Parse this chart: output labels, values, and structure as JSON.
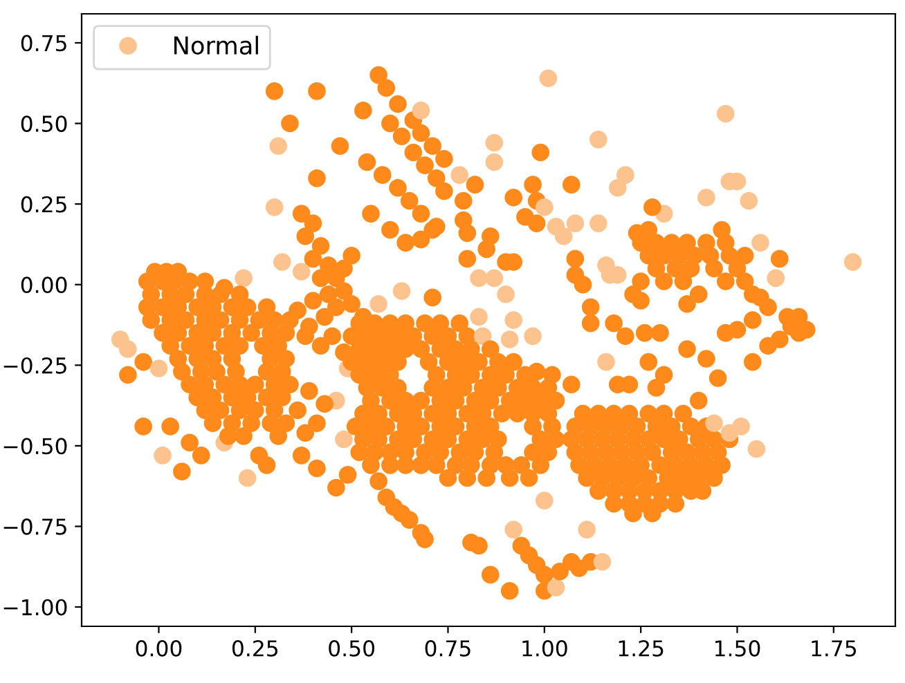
{
  "chart_data": {
    "type": "scatter",
    "xlim": [
      -0.2,
      1.91
    ],
    "ylim": [
      -1.06,
      0.84
    ],
    "xticks": [
      {
        "value": 0,
        "label": "0.00"
      },
      0.25,
      {
        "value": 0.5,
        "label": "0.50"
      },
      0.75,
      {
        "value": 1,
        "label": "1.00"
      },
      1.25,
      {
        "value": 1.5,
        "label": "1.50"
      },
      1.75
    ],
    "yticks": [
      {
        "value": -1,
        "label": "−1.00"
      },
      {
        "value": -0.75,
        "label": "−0.75"
      },
      {
        "value": -0.5,
        "label": "−0.50"
      },
      {
        "value": -0.25,
        "label": "−0.25"
      },
      {
        "value": 0,
        "label": "0.00"
      },
      0.25,
      {
        "value": 0.5,
        "label": "0.50"
      },
      0.75
    ],
    "marker": "circle",
    "legend": "top left",
    "series": [
      {
        "name": "Normal",
        "color": "#fdc38f",
        "x": [
          -0.1,
          -0.08,
          -0.04,
          -0.08,
          0,
          -0.04,
          0.03,
          0.01,
          0.06,
          0.08,
          0.11,
          0.17,
          -0.01,
          0.02,
          0.05,
          -0.03,
          0.01,
          0.04,
          0.08,
          0.12,
          0.17,
          0.22,
          -0.02,
          0.03,
          0.07,
          0.12,
          0.16,
          0.21,
          -0.03,
          0.01,
          0.05,
          0.1,
          0.14,
          0.19,
          0.23,
          0.28,
          -0.02,
          0.03,
          0.07,
          0.12,
          0.16,
          0.21,
          0.26,
          0.3,
          0.34,
          0.01,
          0.05,
          0.1,
          0.14,
          0.19,
          0.24,
          0.29,
          0.33,
          0.03,
          0.08,
          0.12,
          0.17,
          0.21,
          0.27,
          0.31,
          0.05,
          0.1,
          0.14,
          0.19,
          0.29,
          0.33,
          0.06,
          0.11,
          0.15,
          0.2,
          0.28,
          0.32,
          0.08,
          0.12,
          0.17,
          0.21,
          0.25,
          0.3,
          0.34,
          0.1,
          0.14,
          0.19,
          0.23,
          0.28,
          0.32,
          0.12,
          0.16,
          0.21,
          0.25,
          0.3,
          0.14,
          0.19,
          0.24,
          0.29,
          0.33,
          0.18,
          0.22,
          0.31,
          0.26,
          0.28,
          0.23,
          0.37,
          0.41,
          0.46,
          0.49,
          0.48,
          0.46,
          0.36,
          0.41,
          0.42,
          0.38,
          0.45,
          0.48,
          0.49,
          0.39,
          0.43,
          0.38,
          0.37,
          0.4,
          0.38,
          0.42,
          0.4,
          0.44,
          0.48,
          0.5,
          0.46,
          0.42,
          0.37,
          0.48,
          0.44,
          0.5,
          0.46,
          0.4,
          0.36,
          0.43,
          0.39,
          0.32,
          0.3,
          0.3,
          0.41,
          0.53,
          0.34,
          0.31,
          0.47,
          0.41,
          0.57,
          0.59,
          0.62,
          1.01,
          0.6,
          0.63,
          0.66,
          0.69,
          0.72,
          0.74,
          0.66,
          0.68,
          0.71,
          0.74,
          0.78,
          0.82,
          0.54,
          0.58,
          0.62,
          0.65,
          0.68,
          0.72,
          0.55,
          0.6,
          0.64,
          0.68,
          0.71,
          0.79,
          0.79,
          0.8,
          0.86,
          0.85,
          0.8,
          0.9,
          0.92,
          0.83,
          0.87,
          0.99,
          0.87,
          0.87,
          0.92,
          0.97,
          0.98,
          0.95,
          0.98,
          1,
          1.07,
          1.14,
          1.03,
          1.08,
          1.14,
          1.05,
          1.08,
          1.08,
          1.1,
          1.19,
          1.16,
          1.17,
          0.71,
          0.63,
          0.57,
          0.53,
          0.83,
          0.9,
          0.92,
          1.12,
          0.68,
          0.52,
          0.56,
          0.6,
          0.64,
          0.69,
          0.73,
          0.78,
          0.5,
          0.54,
          0.58,
          0.62,
          0.66,
          0.71,
          0.75,
          0.8,
          0.84,
          0.52,
          0.56,
          0.6,
          0.64,
          0.68,
          0.73,
          0.77,
          0.81,
          0.86,
          0.5,
          0.54,
          0.58,
          0.62,
          0.7,
          0.75,
          0.79,
          0.83,
          0.88,
          0.92,
          0.52,
          0.56,
          0.6,
          0.72,
          0.77,
          0.81,
          0.86,
          0.9,
          0.95,
          0.54,
          0.58,
          0.62,
          0.71,
          0.75,
          0.79,
          0.84,
          0.88,
          0.93,
          0.97,
          1.01,
          0.55,
          0.6,
          0.64,
          0.68,
          0.73,
          0.77,
          0.82,
          0.86,
          0.91,
          0.95,
          0.99,
          1.03,
          0.53,
          0.57,
          0.62,
          0.66,
          0.71,
          0.75,
          0.8,
          0.84,
          0.89,
          0.93,
          0.97,
          1.01,
          0.51,
          0.55,
          0.59,
          0.64,
          0.68,
          0.73,
          0.77,
          0.82,
          0.86,
          0.97,
          1.02,
          0.53,
          0.57,
          0.62,
          0.66,
          0.71,
          0.75,
          0.8,
          0.84,
          0.88,
          0.99,
          1.03,
          0.52,
          0.56,
          0.6,
          0.64,
          0.69,
          0.73,
          0.78,
          0.82,
          0.87,
          0.97,
          1.01,
          0.55,
          0.6,
          0.64,
          0.68,
          0.72,
          0.77,
          0.81,
          0.86,
          0.9,
          0.94,
          0.99,
          0.75,
          0.8,
          0.85,
          0.91,
          0.96,
          0.91,
          0.97,
          0.98,
          1.02,
          1.07,
          1.16,
          1.12,
          0.57,
          0.59,
          0.61,
          0.63,
          0.65,
          0.68,
          0.69,
          0.81,
          0.83,
          0.92,
          0.86,
          0.91,
          0.94,
          0.96,
          0.98,
          1,
          1,
          1.03,
          1.07,
          1.09,
          1.12,
          1.15,
          1,
          1.11,
          1.04,
          1.1,
          1.14,
          1.18,
          1.22,
          1.27,
          1.31,
          1.36,
          1.08,
          1.12,
          1.16,
          1.2,
          1.24,
          1.29,
          1.33,
          1.38,
          1.42,
          1.07,
          1.11,
          1.15,
          1.19,
          1.23,
          1.27,
          1.31,
          1.35,
          1.4,
          1.44,
          1.48,
          1.08,
          1.12,
          1.16,
          1.2,
          1.24,
          1.28,
          1.33,
          1.37,
          1.41,
          1.45,
          1.09,
          1.13,
          1.17,
          1.21,
          1.25,
          1.3,
          1.34,
          1.38,
          1.42,
          1.46,
          1.11,
          1.15,
          1.19,
          1.23,
          1.27,
          1.32,
          1.36,
          1.4,
          1.44,
          1.14,
          1.18,
          1.22,
          1.26,
          1.3,
          1.34,
          1.38,
          1.41,
          1.18,
          1.22,
          1.26,
          1.3,
          1.34,
          1.23,
          1.28,
          1.44,
          1.51,
          1.55,
          1.48,
          1.47,
          1.48,
          1.5,
          1.42,
          1.53,
          1.21,
          1.31,
          1.56,
          1.6,
          1.8,
          1.19,
          1.28,
          1.24,
          1.27,
          1.46,
          1.25,
          1.29,
          1.33,
          1.37,
          1.42,
          1.47,
          1.27,
          1.31,
          1.35,
          1.39,
          1.43,
          1.48,
          1.52,
          1.29,
          1.34,
          1.38,
          1.44,
          1.5,
          1.25,
          1.31,
          1.36,
          1.47,
          1.52,
          1.23,
          1.4,
          1.54,
          1.25,
          1.37,
          1.56,
          1.58,
          1.54,
          1.63,
          1.66,
          1.61,
          1.26,
          1.3,
          1.37,
          1.42,
          1.47,
          1.5,
          1.54,
          1.61,
          1.66,
          1.68,
          1.27,
          1.31,
          1.45,
          1.4,
          1.29,
          1.22,
          1.58,
          1.64,
          1.18,
          1.21,
          1.19
        ],
        "values": [
          -0.17,
          -0.2,
          -0.24,
          -0.28,
          -0.26,
          -0.44,
          -0.44,
          -0.53,
          -0.58,
          -0.49,
          -0.53,
          -0.49,
          0.04,
          0.04,
          0.04,
          0.01,
          0.01,
          0.01,
          0.01,
          0.01,
          -0.01,
          0.02,
          -0.03,
          -0.03,
          -0.03,
          -0.03,
          -0.03,
          -0.03,
          -0.07,
          -0.07,
          -0.07,
          -0.07,
          -0.07,
          -0.07,
          -0.07,
          -0.07,
          -0.11,
          -0.11,
          -0.11,
          -0.11,
          -0.11,
          -0.11,
          -0.11,
          -0.11,
          -0.11,
          -0.15,
          -0.15,
          -0.15,
          -0.15,
          -0.15,
          -0.15,
          -0.15,
          -0.15,
          -0.19,
          -0.19,
          -0.19,
          -0.19,
          -0.19,
          -0.19,
          -0.19,
          -0.23,
          -0.23,
          -0.23,
          -0.23,
          -0.23,
          -0.23,
          -0.27,
          -0.27,
          -0.27,
          -0.27,
          -0.27,
          -0.27,
          -0.31,
          -0.31,
          -0.31,
          -0.31,
          -0.31,
          -0.31,
          -0.31,
          -0.35,
          -0.35,
          -0.35,
          -0.35,
          -0.35,
          -0.35,
          -0.39,
          -0.39,
          -0.39,
          -0.39,
          -0.39,
          -0.43,
          -0.43,
          -0.43,
          -0.43,
          -0.43,
          -0.47,
          -0.47,
          -0.47,
          -0.53,
          -0.56,
          -0.6,
          -0.53,
          -0.57,
          -0.63,
          -0.59,
          -0.48,
          -0.36,
          -0.39,
          -0.43,
          -0.19,
          -0.16,
          -0.16,
          -0.21,
          -0.26,
          -0.33,
          -0.37,
          -0.46,
          0.22,
          0.19,
          0.15,
          0.12,
          0.08,
          0.06,
          0.05,
          0.09,
          0.02,
          0.02,
          0.04,
          -0.02,
          -0.03,
          -0.06,
          -0.07,
          -0.05,
          -0.08,
          -0.1,
          -0.13,
          0.07,
          0.24,
          0.6,
          0.6,
          0.54,
          0.5,
          0.43,
          0.43,
          0.33,
          0.65,
          0.61,
          0.56,
          0.64,
          0.5,
          0.46,
          0.41,
          0.37,
          0.33,
          0.29,
          0.51,
          0.47,
          0.43,
          0.39,
          0.34,
          0.31,
          0.38,
          0.34,
          0.3,
          0.26,
          0.22,
          0.18,
          0.22,
          0.17,
          0.13,
          0.14,
          0.17,
          0.26,
          0.2,
          0.16,
          0.15,
          0.11,
          0.08,
          0.07,
          0.07,
          0.02,
          0.02,
          0.41,
          0.44,
          0.38,
          0.27,
          0.31,
          0.26,
          0.21,
          0.19,
          0.24,
          0.31,
          0.45,
          0.18,
          0.19,
          0.19,
          0.15,
          0.08,
          0.03,
          0,
          0.3,
          0.06,
          0.03,
          -0.04,
          -0.02,
          -0.06,
          -0.1,
          -0.1,
          -0.03,
          -0.11,
          -0.07,
          0.54,
          -0.12,
          -0.12,
          -0.12,
          -0.12,
          -0.12,
          -0.12,
          -0.12,
          -0.16,
          -0.16,
          -0.16,
          -0.16,
          -0.16,
          -0.16,
          -0.16,
          -0.16,
          -0.16,
          -0.2,
          -0.2,
          -0.2,
          -0.2,
          -0.2,
          -0.2,
          -0.2,
          -0.2,
          -0.2,
          -0.24,
          -0.24,
          -0.24,
          -0.24,
          -0.24,
          -0.24,
          -0.24,
          -0.24,
          -0.24,
          -0.24,
          -0.28,
          -0.28,
          -0.28,
          -0.28,
          -0.28,
          -0.28,
          -0.28,
          -0.28,
          -0.28,
          -0.32,
          -0.32,
          -0.32,
          -0.32,
          -0.32,
          -0.32,
          -0.32,
          -0.32,
          -0.32,
          -0.32,
          -0.32,
          -0.36,
          -0.36,
          -0.36,
          -0.36,
          -0.36,
          -0.36,
          -0.36,
          -0.36,
          -0.36,
          -0.36,
          -0.36,
          -0.36,
          -0.4,
          -0.4,
          -0.4,
          -0.4,
          -0.4,
          -0.4,
          -0.4,
          -0.4,
          -0.4,
          -0.4,
          -0.4,
          -0.4,
          -0.44,
          -0.44,
          -0.44,
          -0.44,
          -0.44,
          -0.44,
          -0.44,
          -0.44,
          -0.44,
          -0.44,
          -0.44,
          -0.48,
          -0.48,
          -0.48,
          -0.48,
          -0.48,
          -0.48,
          -0.48,
          -0.48,
          -0.48,
          -0.48,
          -0.48,
          -0.52,
          -0.52,
          -0.52,
          -0.52,
          -0.52,
          -0.52,
          -0.52,
          -0.52,
          -0.52,
          -0.52,
          -0.52,
          -0.56,
          -0.56,
          -0.56,
          -0.56,
          -0.56,
          -0.56,
          -0.56,
          -0.56,
          -0.56,
          -0.56,
          -0.56,
          -0.6,
          -0.6,
          -0.6,
          -0.6,
          -0.6,
          -0.17,
          -0.16,
          -0.27,
          -0.28,
          -0.31,
          -0.24,
          -0.12,
          -0.61,
          -0.66,
          -0.69,
          -0.71,
          -0.73,
          -0.77,
          -0.79,
          -0.8,
          -0.81,
          -0.76,
          -0.9,
          -0.95,
          -0.81,
          -0.84,
          -0.87,
          -0.9,
          -0.95,
          -0.94,
          -0.86,
          -0.88,
          -0.86,
          -0.86,
          -0.67,
          -0.76,
          -0.89,
          -0.4,
          -0.4,
          -0.4,
          -0.4,
          -0.4,
          -0.4,
          -0.4,
          -0.44,
          -0.44,
          -0.44,
          -0.44,
          -0.44,
          -0.44,
          -0.44,
          -0.44,
          -0.44,
          -0.48,
          -0.48,
          -0.48,
          -0.48,
          -0.48,
          -0.48,
          -0.48,
          -0.48,
          -0.48,
          -0.48,
          -0.48,
          -0.52,
          -0.52,
          -0.52,
          -0.52,
          -0.52,
          -0.52,
          -0.52,
          -0.52,
          -0.52,
          -0.52,
          -0.56,
          -0.56,
          -0.56,
          -0.56,
          -0.56,
          -0.56,
          -0.56,
          -0.56,
          -0.56,
          -0.56,
          -0.6,
          -0.6,
          -0.6,
          -0.6,
          -0.6,
          -0.6,
          -0.6,
          -0.6,
          -0.6,
          -0.64,
          -0.64,
          -0.64,
          -0.64,
          -0.64,
          -0.64,
          -0.64,
          -0.64,
          -0.68,
          -0.68,
          -0.68,
          -0.68,
          -0.68,
          -0.71,
          -0.71,
          -0.43,
          -0.44,
          -0.51,
          -0.46,
          0.53,
          0.32,
          0.32,
          0.27,
          0.26,
          0.34,
          0.22,
          0.13,
          0.02,
          0.07,
          0.03,
          0.24,
          0.16,
          0.17,
          0.17,
          0.13,
          0.13,
          0.13,
          0.13,
          0.13,
          0.13,
          0.09,
          0.09,
          0.09,
          0.09,
          0.09,
          0.09,
          0.09,
          0.05,
          0.05,
          0.05,
          0.05,
          0.05,
          0.01,
          0.01,
          0.01,
          0.01,
          0.01,
          -0.03,
          -0.03,
          -0.03,
          -0.05,
          -0.06,
          -0.04,
          -0.07,
          -0.11,
          -0.1,
          -0.1,
          0.08,
          -0.15,
          -0.15,
          -0.2,
          -0.23,
          -0.15,
          -0.14,
          -0.24,
          -0.17,
          -0.15,
          -0.14,
          -0.24,
          -0.28,
          -0.29,
          -0.36,
          -0.32,
          -0.31,
          -0.19,
          -0.13,
          -0.12,
          -0.16,
          -0.31
        ],
        "colors": [
          "#fdc38f",
          "#fdc38f",
          "#fe8a1c",
          "#fe8a1c",
          "#fdc38f",
          "#fe8a1c",
          "#fe8a1c",
          "#fdc38f",
          "#fe8a1c",
          "#fe8a1c",
          "#fe8a1c",
          "#fdc38f",
          "#fe8a1c",
          "#fe8a1c",
          "#fe8a1c",
          "#fe8a1c",
          "#fe8a1c",
          "#fe8a1c",
          "#fe8a1c",
          "#fe8a1c",
          "#fe8a1c",
          "#fdc38f",
          "#fe8a1c",
          "#fe8a1c",
          "#fe8a1c",
          "#fe8a1c",
          "#fe8a1c",
          "#fe8a1c",
          "#fe8a1c",
          "#fe8a1c",
          "#fe8a1c",
          "#fe8a1c",
          "#fe8a1c",
          "#fe8a1c",
          "#fe8a1c",
          "#fe8a1c",
          "#fe8a1c",
          "#fe8a1c",
          "#fe8a1c",
          "#fe8a1c",
          "#fe8a1c",
          "#fe8a1c",
          "#fe8a1c",
          "#fe8a1c",
          "#fe8a1c",
          "#fe8a1c",
          "#fe8a1c",
          "#fe8a1c",
          "#fe8a1c",
          "#fe8a1c",
          "#fe8a1c",
          "#fe8a1c",
          "#fe8a1c",
          "#fe8a1c",
          "#fe8a1c",
          "#fe8a1c",
          "#fe8a1c",
          "#fe8a1c",
          "#fe8a1c",
          "#fe8a1c",
          "#fe8a1c",
          "#fe8a1c",
          "#fe8a1c",
          "#fe8a1c",
          "#fe8a1c",
          "#fe8a1c",
          "#fe8a1c",
          "#fe8a1c",
          "#fe8a1c",
          "#fe8a1c",
          "#fe8a1c",
          "#fe8a1c",
          "#fe8a1c",
          "#fe8a1c",
          "#fe8a1c",
          "#fe8a1c",
          "#fe8a1c",
          "#fe8a1c",
          "#fe8a1c",
          "#fe8a1c",
          "#fe8a1c",
          "#fe8a1c",
          "#fe8a1c",
          "#fe8a1c",
          "#fe8a1c",
          "#fe8a1c",
          "#fe8a1c",
          "#fe8a1c",
          "#fe8a1c",
          "#fe8a1c",
          "#fe8a1c",
          "#fe8a1c",
          "#fe8a1c",
          "#fe8a1c",
          "#fe8a1c",
          "#fe8a1c",
          "#fe8a1c",
          "#fe8a1c",
          "#fe8a1c",
          "#fe8a1c",
          "#fdc38f",
          "#fe8a1c",
          "#fe8a1c",
          "#fe8a1c",
          "#fe8a1c",
          "#fdc38f",
          "#fdc38f",
          "#fe8a1c",
          "#fe8a1c",
          "#fe8a1c",
          "#fe8a1c",
          "#fe8a1c",
          "#fe8a1c",
          "#fdc38f",
          "#fe8a1c",
          "#fe8a1c",
          "#fe8a1c",
          "#fe8a1c",
          "#fe8a1c",
          "#fe8a1c",
          "#fe8a1c",
          "#fe8a1c",
          "#fe8a1c",
          "#fe8a1c",
          "#fe8a1c",
          "#fe8a1c",
          "#fe8a1c",
          "#fdc38f",
          "#fe8a1c",
          "#fe8a1c",
          "#fe8a1c",
          "#fe8a1c",
          "#fe8a1c",
          "#fe8a1c",
          "#fe8a1c",
          "#fe8a1c",
          "#fdc38f",
          "#fdc38f",
          "#fe8a1c",
          "#fe8a1c",
          "#fe8a1c",
          "#fe8a1c",
          "#fdc38f",
          "#fe8a1c",
          "#fe8a1c",
          "#fe8a1c",
          "#fe8a1c",
          "#fe8a1c",
          "#fdc38f",
          "#fe8a1c",
          "#fe8a1c",
          "#fe8a1c",
          "#fe8a1c",
          "#fe8a1c",
          "#fe8a1c",
          "#fe8a1c",
          "#fe8a1c",
          "#fe8a1c",
          "#fe8a1c",
          "#fdc38f",
          "#fe8a1c",
          "#fe8a1c",
          "#fe8a1c",
          "#fe8a1c",
          "#fe8a1c",
          "#fe8a1c",
          "#fe8a1c",
          "#fe8a1c",
          "#fe8a1c",
          "#fe8a1c",
          "#fe8a1c",
          "#fe8a1c",
          "#fe8a1c",
          "#fe8a1c",
          "#fe8a1c",
          "#fe8a1c",
          "#fe8a1c",
          "#fe8a1c",
          "#fe8a1c",
          "#fe8a1c",
          "#fdc38f",
          "#fdc38f",
          "#fe8a1c",
          "#fdc38f",
          "#fdc38f",
          "#fe8a1c",
          "#fe8a1c",
          "#fe8a1c",
          "#fe8a1c",
          "#fe8a1c",
          "#fdc38f",
          "#fe8a1c",
          "#fdc38f",
          "#fdc38f",
          "#fdc38f",
          "#fdc38f",
          "#fdc38f",
          "#fe8a1c",
          "#fe8a1c",
          "#fe8a1c",
          "#fdc38f",
          "#fdc38f",
          "#fdc38f",
          "#fe8a1c",
          "#fdc38f",
          "#fdc38f",
          "#fe8a1c",
          "#fdc38f",
          "#fdc38f",
          "#fdc38f",
          "#fe8a1c",
          "#fdc38f",
          "#fe8a1c",
          "#fe8a1c",
          "#fe8a1c",
          "#fe8a1c",
          "#fe8a1c",
          "#fe8a1c",
          "#fe8a1c",
          "#fe8a1c",
          "#fe8a1c",
          "#fe8a1c",
          "#fe8a1c",
          "#fe8a1c",
          "#fe8a1c",
          "#fe8a1c",
          "#fe8a1c",
          "#fdc38f",
          "#fe8a1c",
          "#fe8a1c",
          "#fe8a1c",
          "#fe8a1c",
          "#fe8a1c",
          "#fe8a1c",
          "#fe8a1c",
          "#fe8a1c",
          "#fe8a1c",
          "#fe8a1c",
          "#fe8a1c",
          "#fe8a1c",
          "#fe8a1c",
          "#fe8a1c",
          "#fe8a1c",
          "#fe8a1c",
          "#fe8a1c",
          "#fe8a1c",
          "#fe8a1c",
          "#fe8a1c",
          "#fe8a1c",
          "#fe8a1c",
          "#fe8a1c",
          "#fe8a1c",
          "#fe8a1c",
          "#fe8a1c",
          "#fe8a1c",
          "#fe8a1c",
          "#fe8a1c",
          "#fe8a1c",
          "#fe8a1c",
          "#fe8a1c",
          "#fe8a1c",
          "#fe8a1c",
          "#fe8a1c",
          "#fe8a1c",
          "#fe8a1c",
          "#fe8a1c",
          "#fe8a1c",
          "#fe8a1c",
          "#fe8a1c",
          "#fe8a1c",
          "#fe8a1c",
          "#fe8a1c",
          "#fe8a1c",
          "#fe8a1c",
          "#fe8a1c",
          "#fe8a1c",
          "#fe8a1c",
          "#fe8a1c",
          "#fe8a1c",
          "#fe8a1c",
          "#fe8a1c",
          "#fe8a1c",
          "#fe8a1c",
          "#fe8a1c",
          "#fe8a1c",
          "#fe8a1c",
          "#fe8a1c",
          "#fe8a1c",
          "#fe8a1c",
          "#fe8a1c",
          "#fe8a1c",
          "#fe8a1c",
          "#fe8a1c",
          "#fe8a1c",
          "#fe8a1c",
          "#fe8a1c",
          "#fe8a1c",
          "#fe8a1c",
          "#fe8a1c",
          "#fe8a1c",
          "#fe8a1c",
          "#fe8a1c",
          "#fe8a1c",
          "#fe8a1c",
          "#fe8a1c",
          "#fe8a1c",
          "#fe8a1c",
          "#fe8a1c",
          "#fe8a1c",
          "#fe8a1c",
          "#fe8a1c",
          "#fe8a1c",
          "#fe8a1c",
          "#fe8a1c",
          "#fe8a1c",
          "#fe8a1c",
          "#fe8a1c",
          "#fe8a1c",
          "#fe8a1c",
          "#fe8a1c",
          "#fe8a1c",
          "#fe8a1c",
          "#fe8a1c",
          "#fe8a1c",
          "#fe8a1c",
          "#fe8a1c",
          "#fe8a1c",
          "#fe8a1c",
          "#fe8a1c",
          "#fe8a1c",
          "#fe8a1c",
          "#fe8a1c",
          "#fe8a1c",
          "#fe8a1c",
          "#fe8a1c",
          "#fe8a1c",
          "#fe8a1c",
          "#fe8a1c",
          "#fe8a1c",
          "#fe8a1c",
          "#fdc38f",
          "#fdc38f",
          "#fe8a1c",
          "#fe8a1c",
          "#fe8a1c",
          "#fdc38f",
          "#fe8a1c",
          "#fe8a1c",
          "#fe8a1c",
          "#fe8a1c",
          "#fe8a1c",
          "#fe8a1c",
          "#fe8a1c",
          "#fe8a1c",
          "#fe8a1c",
          "#fe8a1c",
          "#fdc38f",
          "#fe8a1c",
          "#fe8a1c",
          "#fe8a1c",
          "#fe8a1c",
          "#fe8a1c",
          "#fe8a1c",
          "#fe8a1c",
          "#fdc38f",
          "#fe8a1c",
          "#fe8a1c",
          "#fe8a1c",
          "#fdc38f",
          "#fdc38f",
          "#fdc38f",
          "#fe8a1c",
          "#fe8a1c",
          "#fe8a1c",
          "#fe8a1c",
          "#fe8a1c",
          "#fe8a1c",
          "#fe8a1c",
          "#fe8a1c",
          "#fe8a1c",
          "#fe8a1c",
          "#fe8a1c",
          "#fe8a1c",
          "#fe8a1c",
          "#fe8a1c",
          "#fe8a1c",
          "#fe8a1c",
          "#fe8a1c",
          "#fe8a1c",
          "#fe8a1c",
          "#fe8a1c",
          "#fe8a1c",
          "#fe8a1c",
          "#fe8a1c",
          "#fe8a1c",
          "#fe8a1c",
          "#fe8a1c",
          "#fe8a1c",
          "#fe8a1c",
          "#fe8a1c",
          "#fe8a1c",
          "#fe8a1c",
          "#fe8a1c",
          "#fe8a1c",
          "#fe8a1c",
          "#fe8a1c",
          "#fe8a1c",
          "#fe8a1c",
          "#fe8a1c",
          "#fe8a1c",
          "#fe8a1c",
          "#fe8a1c",
          "#fe8a1c",
          "#fe8a1c",
          "#fe8a1c",
          "#fe8a1c",
          "#fe8a1c",
          "#fe8a1c",
          "#fe8a1c",
          "#fe8a1c",
          "#fe8a1c",
          "#fe8a1c",
          "#fe8a1c",
          "#fe8a1c",
          "#fe8a1c",
          "#fe8a1c",
          "#fe8a1c",
          "#fe8a1c",
          "#fe8a1c",
          "#fe8a1c",
          "#fe8a1c",
          "#fe8a1c",
          "#fe8a1c",
          "#fe8a1c",
          "#fe8a1c",
          "#fe8a1c",
          "#fe8a1c",
          "#fe8a1c",
          "#fe8a1c",
          "#fe8a1c",
          "#fe8a1c",
          "#fe8a1c",
          "#fe8a1c",
          "#fdc38f",
          "#fdc38f",
          "#fdc38f",
          "#fdc38f",
          "#fdc38f",
          "#fdc38f",
          "#fdc38f",
          "#fdc38f",
          "#fdc38f",
          "#fdc38f",
          "#fdc38f",
          "#fdc38f",
          "#fdc38f",
          "#fdc38f",
          "#fdc38f",
          "#fe8a1c",
          "#fe8a1c",
          "#fe8a1c",
          "#fe8a1c",
          "#fe8a1c",
          "#fe8a1c",
          "#fe8a1c",
          "#fe8a1c",
          "#fe8a1c",
          "#fe8a1c",
          "#fe8a1c",
          "#fe8a1c",
          "#fe8a1c",
          "#fe8a1c",
          "#fe8a1c",
          "#fe8a1c",
          "#fe8a1c",
          "#fe8a1c",
          "#fe8a1c",
          "#fe8a1c",
          "#fe8a1c",
          "#fe8a1c",
          "#fe8a1c",
          "#fe8a1c",
          "#fe8a1c",
          "#fe8a1c",
          "#fe8a1c",
          "#fe8a1c",
          "#fe8a1c",
          "#fe8a1c",
          "#fe8a1c",
          "#fe8a1c",
          "#fe8a1c",
          "#fe8a1c",
          "#fe8a1c",
          "#fe8a1c",
          "#fe8a1c",
          "#fe8a1c",
          "#fe8a1c",
          "#fe8a1c",
          "#fe8a1c",
          "#fe8a1c",
          "#fe8a1c",
          "#fe8a1c",
          "#fe8a1c",
          "#fe8a1c",
          "#fe8a1c",
          "#fe8a1c",
          "#fe8a1c",
          "#fe8a1c",
          "#fe8a1c",
          "#fe8a1c",
          "#fe8a1c",
          "#fe8a1c",
          "#fe8a1c",
          "#fe8a1c",
          "#fe8a1c",
          "#fe8a1c",
          "#fe8a1c"
        ]
      }
    ]
  }
}
